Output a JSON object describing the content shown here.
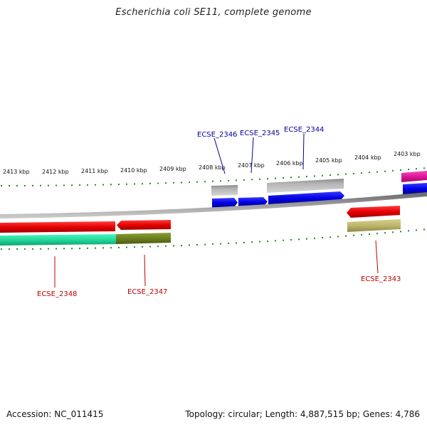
{
  "title": "Escherichia coli SE11, complete genome",
  "footer": {
    "accession": "Accession: NC_011415",
    "topology": "Topology: circular; Length: 4,887,515 bp; Genes: 4,786"
  },
  "colors": {
    "backbone": "#8c8c8c",
    "tick": "#228b22",
    "cds_blue": "#0000e6",
    "cds_red": "#e60000",
    "cds_green": "#22d99a",
    "cds_olive": "#6b7f1f",
    "cds_khaki": "#bdb76b",
    "cds_magenta": "#e0169c",
    "cds_grey": "#b4b4b4",
    "label_blue": "#00009b",
    "label_red": "#c00000"
  },
  "ruler": {
    "tick_labels": [
      "2413 kbp",
      "2412 kbp",
      "2411 kbp",
      "2410 kbp",
      "2409 kbp",
      "2408 kbp",
      "2407 kbp",
      "2406 kbp",
      "2405 kbp",
      "2404 kbp",
      "2403 kbp"
    ]
  },
  "genes_top": [
    {
      "label": "ECSE_2346"
    },
    {
      "label": "ECSE_2345"
    },
    {
      "label": "ECSE_2344"
    }
  ],
  "genes_bottom": [
    {
      "label": "ECSE_2348"
    },
    {
      "label": "ECSE_2347"
    },
    {
      "label": "ECSE_2343"
    }
  ]
}
